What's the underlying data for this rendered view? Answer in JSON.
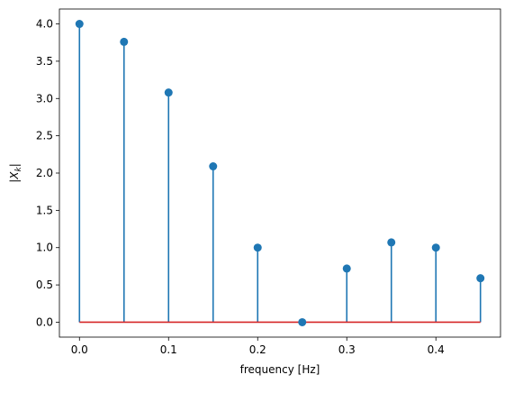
{
  "chart_data": {
    "type": "stem",
    "title": "",
    "xlabel": "frequency [Hz]",
    "ylabel": "|X_k|",
    "xlim": [
      -0.0225,
      0.4725
    ],
    "ylim": [
      -0.2,
      4.2
    ],
    "xticks": [
      0.0,
      0.1,
      0.2,
      0.3,
      0.4
    ],
    "xtick_labels": [
      "0.0",
      "0.1",
      "0.2",
      "0.3",
      "0.4"
    ],
    "yticks": [
      0.0,
      0.5,
      1.0,
      1.5,
      2.0,
      2.5,
      3.0,
      3.5,
      4.0
    ],
    "ytick_labels": [
      "0.0",
      "0.5",
      "1.0",
      "1.5",
      "2.0",
      "2.5",
      "3.0",
      "3.5",
      "4.0"
    ],
    "grid": false,
    "x": [
      0.0,
      0.05,
      0.1,
      0.15,
      0.2,
      0.25,
      0.3,
      0.35,
      0.4,
      0.45
    ],
    "values": [
      4.0,
      3.76,
      3.08,
      2.09,
      1.0,
      0.0,
      0.72,
      1.07,
      1.0,
      0.59
    ],
    "baseline": 0.0,
    "colors": {
      "stem": "#1f77b4",
      "marker": "#1f77b4",
      "baseline": "#d62728"
    }
  }
}
